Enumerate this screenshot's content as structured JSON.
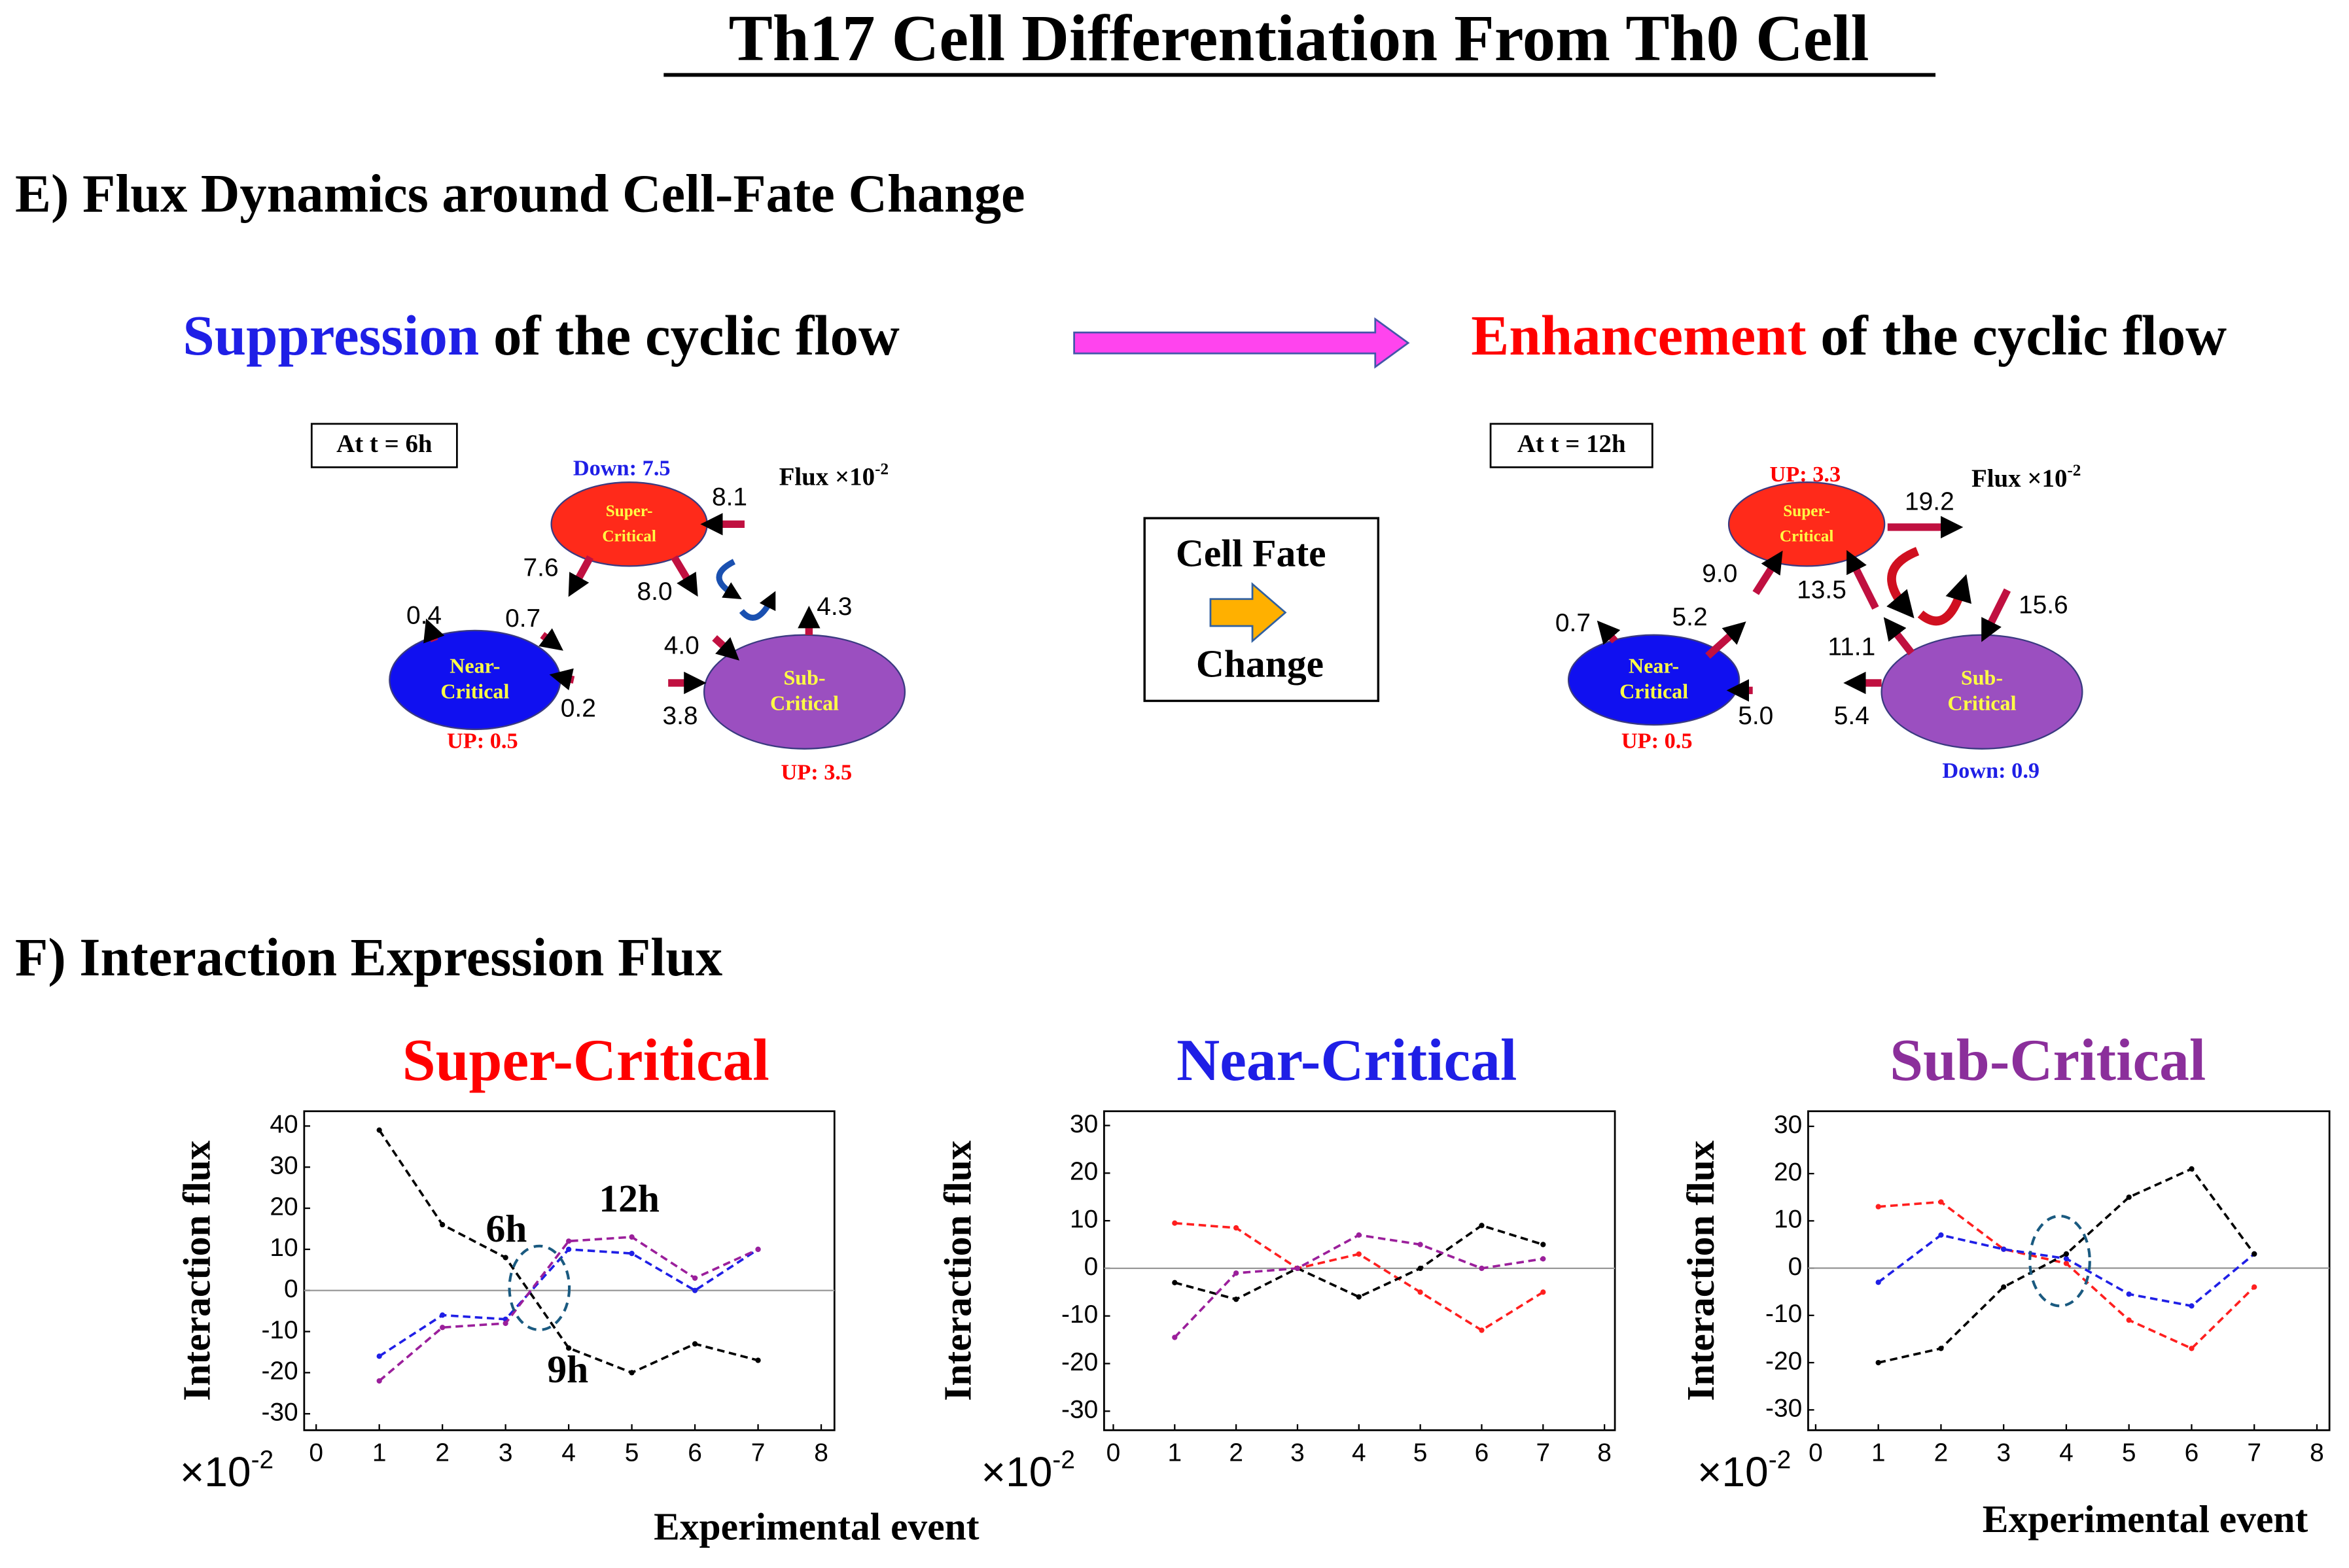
{
  "title": "Th17 Cell Differentiation From Th0 Cell",
  "panel_e": {
    "heading": "E) Flux Dynamics around Cell-Fate Change",
    "left_caption": [
      "Suppression",
      " of  the cyclic flow"
    ],
    "right_caption": [
      "Enhancement",
      " of  the cyclic flow"
    ],
    "center_box": [
      "Cell Fate",
      "Change"
    ],
    "diagrams": [
      {
        "time_label": "At t = 6h",
        "flux_unit": [
          "Flux ×10",
          "-2"
        ],
        "nodes": [
          {
            "label": [
              "Super-",
              "Critical"
            ],
            "status": "Down: 7.5"
          },
          {
            "label": [
              "Near-",
              "Critical"
            ],
            "status": "UP: 0.5"
          },
          {
            "label": [
              "Sub-",
              "Critical"
            ],
            "status": "UP: 3.5"
          }
        ],
        "fluxes": [
          "8.1",
          "7.6",
          "8.0",
          "0.4",
          "0.7",
          "4.3",
          "4.0",
          "0.2",
          "3.8"
        ]
      },
      {
        "time_label": "At t = 12h",
        "flux_unit": [
          "Flux ×10",
          "-2"
        ],
        "nodes": [
          {
            "label": [
              "Super-",
              "Critical"
            ],
            "status": "UP: 3.3"
          },
          {
            "label": [
              "Near-",
              "Critical"
            ],
            "status": "UP: 0.5"
          },
          {
            "label": [
              "Sub-",
              "Critical"
            ],
            "status": "Down: 0.9"
          }
        ],
        "fluxes": [
          "19.2",
          "9.0",
          "13.5",
          "15.6",
          "0.7",
          "5.2",
          "11.1",
          "5.4",
          "5.0"
        ]
      }
    ]
  },
  "panel_f": {
    "heading": "F) Interaction Expression Flux"
  },
  "chart_data": [
    {
      "type": "line",
      "title": "Super-Critical",
      "title_color": "#ff0000",
      "ylabel": "Interaction flux",
      "xlabel": "Experimental event",
      "multiplier": "×10",
      "multiplier_exp": "-2",
      "x": [
        1,
        2,
        3,
        4,
        5,
        6,
        7
      ],
      "series": [
        {
          "color": "#000000",
          "values": [
            39,
            16,
            8,
            -14,
            -20,
            -13,
            -17
          ]
        },
        {
          "color": "#1f1fe6",
          "values": [
            -16,
            -6,
            -7,
            10,
            9,
            0,
            10
          ]
        },
        {
          "color": "#9b1f9b",
          "values": [
            -22,
            -9,
            -8,
            12,
            13,
            3,
            10
          ]
        }
      ],
      "xlim": [
        -0.19,
        8.21
      ],
      "xticks": [
        0,
        1,
        2,
        3,
        4,
        5,
        6,
        7,
        8
      ],
      "ylim": [
        -34,
        43.6
      ],
      "yticks": [
        -30,
        -20,
        -10,
        0,
        10,
        20,
        30,
        40
      ],
      "zero_line": true,
      "annotations": [
        "6h",
        "12h",
        "9h"
      ]
    },
    {
      "type": "line",
      "title": "Near-Critical",
      "title_color": "#1f1fe6",
      "ylabel": "Interaction flux",
      "multiplier": "×10",
      "multiplier_exp": "-2",
      "x": [
        1,
        2,
        3,
        4,
        5,
        6,
        7
      ],
      "series": [
        {
          "color": "#ff1f1f",
          "values": [
            9.5,
            8.5,
            0,
            3,
            -5,
            -13,
            -5
          ]
        },
        {
          "color": "#000000",
          "values": [
            -3,
            -6.5,
            0,
            -6,
            0,
            9,
            5
          ]
        },
        {
          "color": "#9b1f9b",
          "values": [
            -14.5,
            -1,
            0,
            7,
            5,
            0,
            2
          ]
        }
      ],
      "xlim": [
        -0.15,
        8.17
      ],
      "xticks": [
        0,
        1,
        2,
        3,
        4,
        5,
        6,
        7,
        8
      ],
      "ylim": [
        -34,
        33
      ],
      "yticks": [
        -30,
        -20,
        -10,
        0,
        10,
        20,
        30
      ],
      "zero_line": true
    },
    {
      "type": "line",
      "title": "Sub-Critical",
      "title_color": "#8b2f9b",
      "ylabel": "Interaction flux",
      "xlabel": "Experimental event",
      "multiplier": "×10",
      "multiplier_exp": "-2",
      "x": [
        1,
        2,
        3,
        4,
        5,
        6,
        7
      ],
      "series": [
        {
          "color": "#ff1f1f",
          "values": [
            13,
            14,
            4,
            1,
            -11,
            -17,
            -4
          ]
        },
        {
          "color": "#1f1fe6",
          "values": [
            -3,
            7,
            4,
            2,
            -5.5,
            -8,
            3
          ]
        },
        {
          "color": "#000000",
          "values": [
            -20,
            -17,
            -4,
            3,
            15,
            21,
            3
          ]
        }
      ],
      "xlim": [
        -0.12,
        8.2
      ],
      "xticks": [
        0,
        1,
        2,
        3,
        4,
        5,
        6,
        7,
        8
      ],
      "ylim": [
        -34.3,
        33.2
      ],
      "yticks": [
        -30,
        -20,
        -10,
        0,
        10,
        20,
        30
      ],
      "zero_line": true
    }
  ]
}
